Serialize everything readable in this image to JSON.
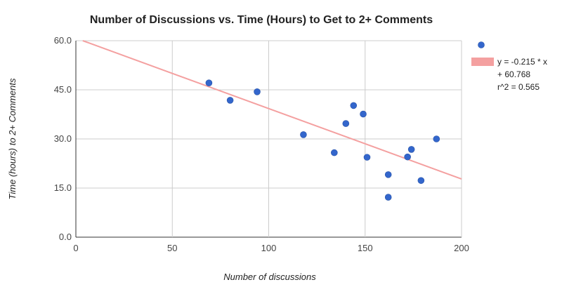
{
  "chart_data": {
    "type": "scatter",
    "title": "Number of Discussions vs. Time (Hours) to Get to 2+ Comments",
    "xlabel": "Number of discussions",
    "ylabel": "Time (hours) to 2+ Comments",
    "xlim": [
      0,
      200
    ],
    "ylim": [
      0,
      60
    ],
    "x_ticks": [
      "0",
      "50",
      "100",
      "150",
      "200"
    ],
    "y_ticks": [
      "0.0",
      "15.0",
      "30.0",
      "45.0",
      "60.0"
    ],
    "grid": true,
    "legend_position": "right",
    "series": [
      {
        "type": "scatter",
        "color": "#3366cc",
        "points": [
          {
            "x": 69,
            "y": 47.1
          },
          {
            "x": 80,
            "y": 41.8
          },
          {
            "x": 94,
            "y": 44.4
          },
          {
            "x": 118,
            "y": 31.3
          },
          {
            "x": 134,
            "y": 25.8
          },
          {
            "x": 140,
            "y": 34.7
          },
          {
            "x": 144,
            "y": 40.2
          },
          {
            "x": 149,
            "y": 37.6
          },
          {
            "x": 151,
            "y": 24.4
          },
          {
            "x": 162,
            "y": 19.1
          },
          {
            "x": 162,
            "y": 12.2
          },
          {
            "x": 172,
            "y": 24.5
          },
          {
            "x": 174,
            "y": 26.8
          },
          {
            "x": 179,
            "y": 17.3
          },
          {
            "x": 187,
            "y": 30.0
          }
        ]
      },
      {
        "type": "trendline",
        "color": "#f4a0a0",
        "slope": -0.215,
        "intercept": 60.768,
        "x_range": [
          0,
          200
        ],
        "legend_lines": [
          "y = -0.215 * x",
          "+ 60.768",
          "r^2 = 0.565"
        ]
      }
    ]
  }
}
